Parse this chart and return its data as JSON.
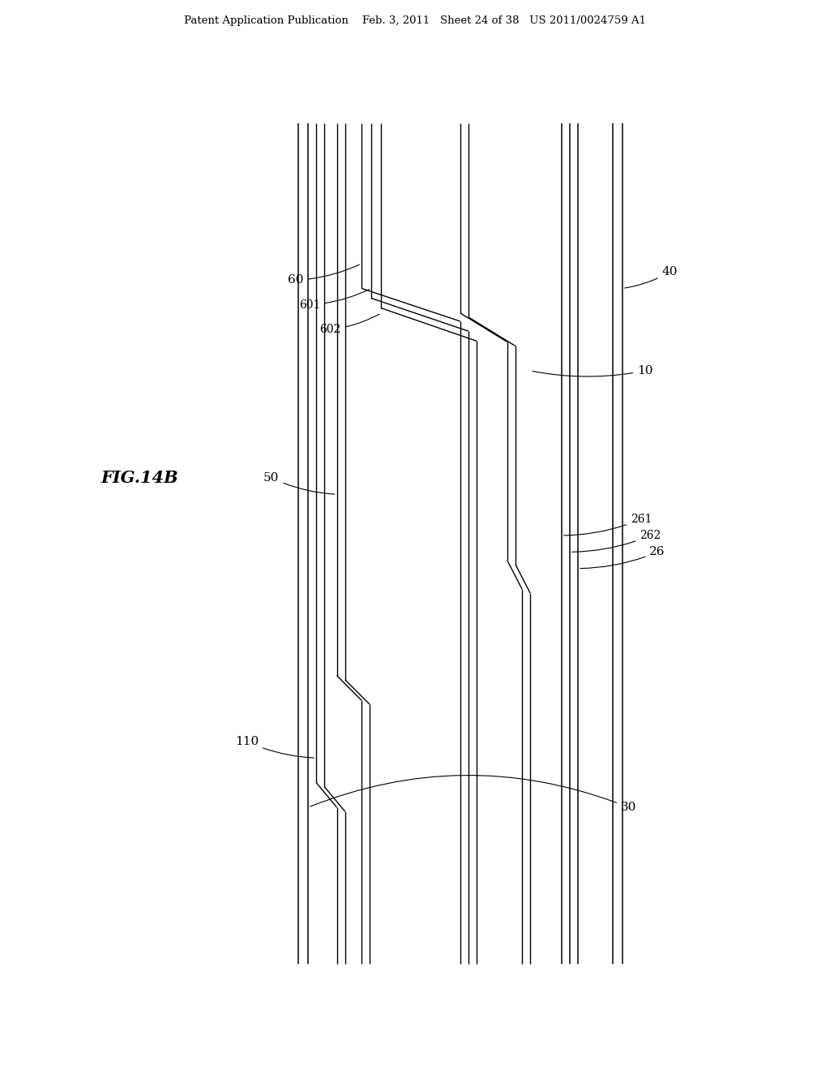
{
  "bg_color": "#ffffff",
  "header_text": "Patent Application Publication    Feb. 3, 2011   Sheet 24 of 38   US 2011/0024759 A1",
  "fig_label": "FIG.14B",
  "line_color": "#000000",
  "line_width": 1.2,
  "annotation_fontsize": 11,
  "header_fontsize": 9.5,
  "figlabel_fontsize": 16,
  "canvas": {
    "xmin": 0,
    "xmax": 10,
    "ymin": 0,
    "ymax": 13
  }
}
